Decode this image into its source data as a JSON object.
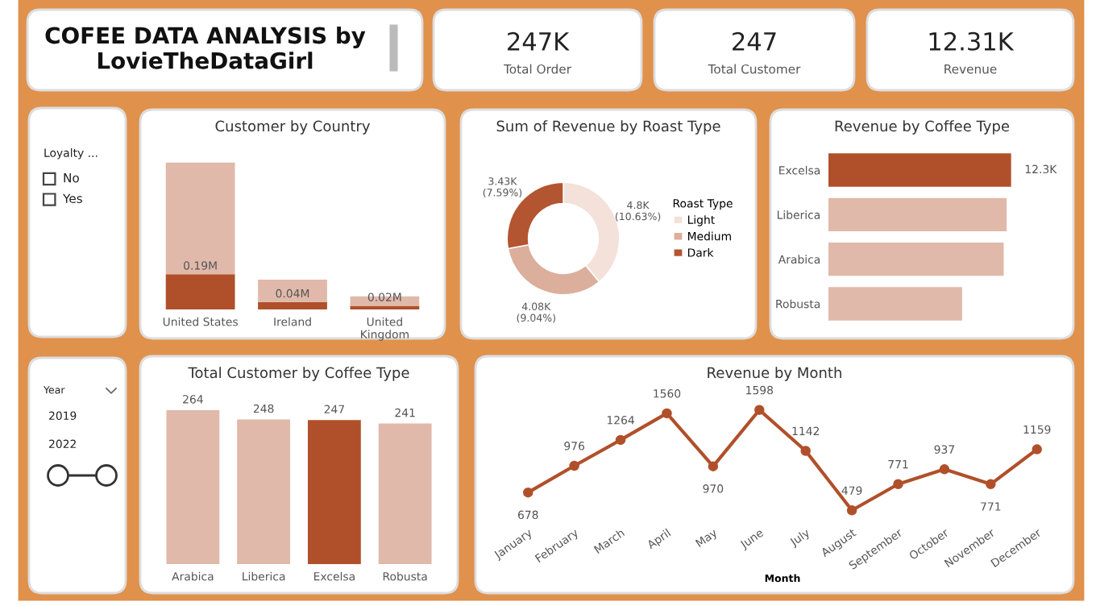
{
  "chart_data": [
    {
      "type": "other",
      "title": "COFEE DATA ANALYSIS by\nLovieTheDataGirl"
    },
    {
      "type": "other",
      "annotations": [
        "247K",
        "Total Order"
      ]
    },
    {
      "type": "other",
      "annotations": [
        "247",
        "Total Customer"
      ]
    },
    {
      "type": "other",
      "annotations": [
        "12.31K",
        "Revenue"
      ]
    },
    {
      "type": "other",
      "title": "Loyalty ...",
      "annotations": [
        "No",
        "Yes"
      ]
    },
    {
      "type": "bar",
      "title": "Customer by Country",
      "stacked": true,
      "tick_labels": "x",
      "categories": [
        "United States",
        "Ireland",
        "United Kingdom"
      ],
      "series": [
        {
          "color": "#b0502a",
          "values": [
            0.19,
            0.04,
            0.02
          ],
          "value_labels": [
            "0.19M",
            "0.04M",
            "0.02M"
          ]
        },
        {
          "color": "#e0b9aa",
          "values": [
            0.6,
            0.12,
            0.05
          ]
        }
      ]
    },
    {
      "type": "donut",
      "title": "Sum of Revenue by Roast Type",
      "legend_title": "Roast Type",
      "legend": "right",
      "categories": [
        "Light",
        "Medium",
        "Dark"
      ],
      "values": [
        4800,
        4080,
        3430
      ],
      "colors": [
        "#f3e1da",
        "#dcae9c",
        "#b35530"
      ],
      "value_labels": [
        "4.8K\n(10.63%)",
        "4.08K\n(9.04%)",
        "3.43K\n(7.59%)"
      ]
    },
    {
      "type": "bar",
      "title": "Revenue by Coffee Type",
      "orientation": "horizontal",
      "tick_labels": "y",
      "categories": [
        "Excelsa",
        "Liberica",
        "Arabica",
        "Robusta"
      ],
      "values": [
        12.3,
        12.0,
        11.8,
        9.0
      ],
      "colors": [
        "#b0502a",
        "#e0b9aa",
        "#e0b9aa",
        "#e0b9aa"
      ],
      "value_labels": [
        "12.3K",
        null,
        null,
        null
      ]
    },
    {
      "type": "other",
      "title": "Year",
      "annotations": [
        "2019",
        "2022"
      ]
    },
    {
      "type": "bar",
      "title": "Total Customer by Coffee Type",
      "tick_labels": "x",
      "data_labels": true,
      "categories": [
        "Arabica",
        "Liberica",
        "Excelsa",
        "Robusta"
      ],
      "values": [
        264,
        248,
        247,
        241
      ],
      "colors": [
        "#e0b9aa",
        "#e0b9aa",
        "#b0502a",
        "#e0b9aa"
      ]
    },
    {
      "type": "line",
      "title": "Revenue by Month",
      "xlabel": "Month",
      "tick_labels": "x",
      "data_labels": true,
      "marker": "circle",
      "line_style": "solid",
      "categories": [
        "January",
        "February",
        "March",
        "April",
        "May",
        "June",
        "July",
        "August",
        "September",
        "October",
        "November",
        "December"
      ],
      "series": [
        {
          "color": "#b0502a",
          "values": [
            678,
            976,
            1264,
            1560,
            970,
            1598,
            1142,
            479,
            771,
            937,
            771,
            1159
          ]
        }
      ]
    }
  ]
}
